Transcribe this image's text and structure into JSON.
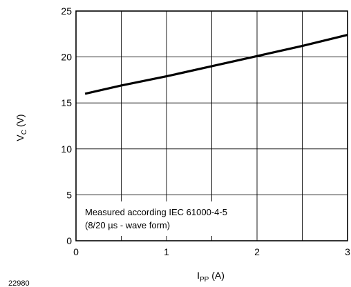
{
  "chart_data": {
    "type": "line",
    "xlabel": {
      "main": "I",
      "sub": "PP",
      "unit": " (A)"
    },
    "ylabel": {
      "main": "V",
      "sub": "C",
      "unit": " (V)"
    },
    "xlim": [
      0,
      3
    ],
    "ylim": [
      0,
      25
    ],
    "x_ticks": [
      0,
      1,
      2,
      3
    ],
    "x_tick_labels": [
      "0",
      "1",
      "2",
      "3"
    ],
    "x_grid": [
      0.5,
      1,
      1.5,
      2,
      2.5
    ],
    "y_ticks": [
      0,
      5,
      10,
      15,
      20,
      25
    ],
    "y_tick_labels": [
      "0",
      "5",
      "10",
      "15",
      "20",
      "25"
    ],
    "y_grid": [
      5,
      10,
      15,
      20
    ],
    "grid": true,
    "series": [
      {
        "x": [
          0.1,
          0.5,
          1.0,
          1.5,
          2.0,
          2.5,
          3.0
        ],
        "y": [
          16.0,
          16.9,
          17.9,
          19.0,
          20.1,
          21.2,
          22.4
        ]
      }
    ],
    "annotation": {
      "lines": [
        "Measured according IEC 61000-4-5",
        "(8/20 µs - wave form)"
      ]
    },
    "figure_id": "22980",
    "colors": {
      "line": "#000000",
      "grid": "#000000",
      "background": "#ffffff"
    }
  }
}
